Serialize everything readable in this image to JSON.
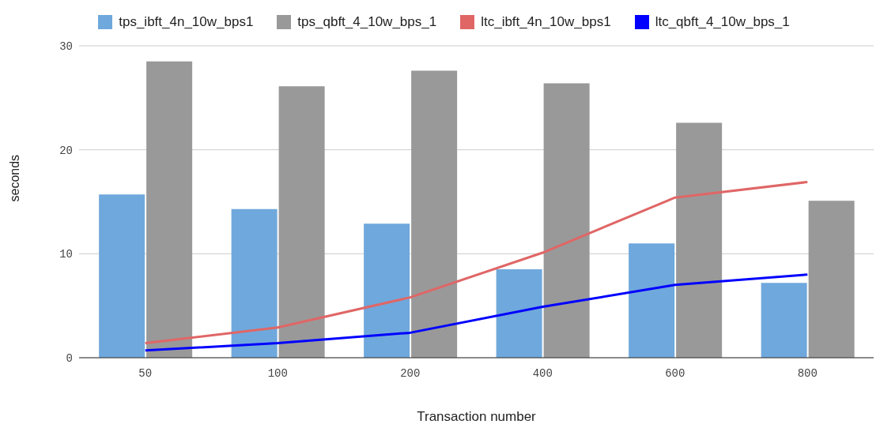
{
  "chart_data": {
    "type": "bar",
    "xlabel": "Transaction number",
    "ylabel": "seconds",
    "categories": [
      "50",
      "100",
      "200",
      "400",
      "600",
      "800"
    ],
    "series": [
      {
        "name": "tps_ibft_4n_10w_bps1",
        "type": "bar",
        "color": "#6fa8dc",
        "values": [
          15.7,
          14.3,
          12.9,
          8.5,
          11.0,
          7.2
        ]
      },
      {
        "name": "tps_qbft_4_10w_bps_1",
        "type": "bar",
        "color": "#999999",
        "values": [
          28.5,
          26.1,
          27.6,
          26.4,
          22.6,
          15.1
        ]
      },
      {
        "name": "ltc_ibft_4n_10w_bps1",
        "type": "line",
        "color": "#e06666",
        "values": [
          1.4,
          2.9,
          5.8,
          10.1,
          15.4,
          16.9
        ]
      },
      {
        "name": "ltc_qbft_4_10w_bps_1",
        "type": "line",
        "color": "#0000ff",
        "values": [
          0.7,
          1.4,
          2.4,
          4.9,
          7.0,
          8.0
        ]
      }
    ],
    "ylim": [
      0,
      30
    ],
    "yticks": [
      0,
      10,
      20,
      30
    ],
    "grid": "y",
    "legend": "top",
    "marker": "none"
  }
}
